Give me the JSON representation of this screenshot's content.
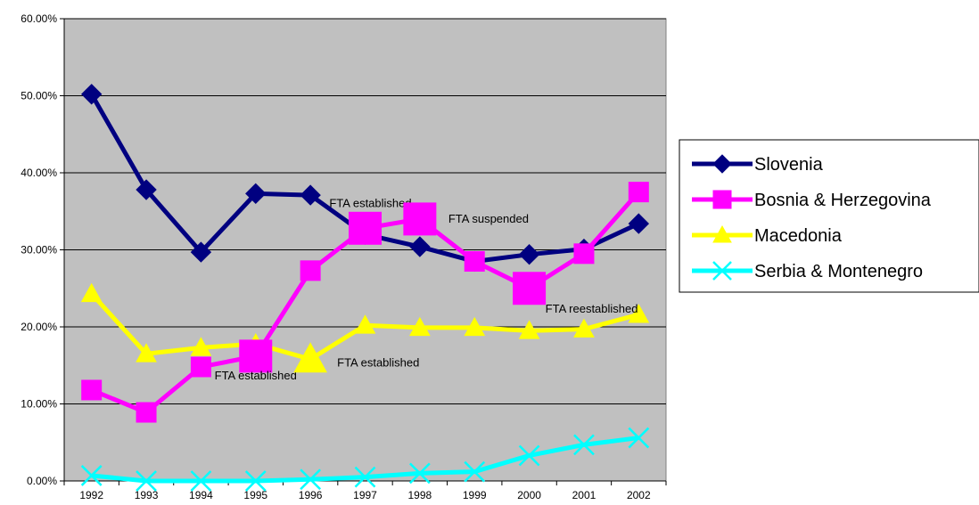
{
  "chart_data": {
    "type": "line",
    "title": "",
    "xlabel": "",
    "ylabel": "",
    "categories": [
      "1992",
      "1993",
      "1994",
      "1995",
      "1996",
      "1997",
      "1998",
      "1999",
      "2000",
      "2001",
      "2002"
    ],
    "ylim": [
      0,
      0.6
    ],
    "yticks": [
      {
        "value": 0.0,
        "label": "0.00%"
      },
      {
        "value": 0.1,
        "label": "10.00%"
      },
      {
        "value": 0.2,
        "label": "20.00%"
      },
      {
        "value": 0.3,
        "label": "30.00%"
      },
      {
        "value": 0.4,
        "label": "40.00%"
      },
      {
        "value": 0.5,
        "label": "50.00%"
      },
      {
        "value": 0.6,
        "label": "60.00%"
      }
    ],
    "grid": "horizontal",
    "plot_background": "#C0C0C0",
    "legend_position": "right",
    "series": [
      {
        "name": "Slovenia",
        "color": "#000080",
        "marker": "diamond",
        "values": [
          0.502,
          0.378,
          0.297,
          0.373,
          0.371,
          0.32,
          0.304,
          0.285,
          0.294,
          0.301,
          0.334
        ]
      },
      {
        "name": "Bosnia & Herzegovina",
        "color": "#FF00FF",
        "marker": "square",
        "values": [
          0.118,
          0.089,
          0.148,
          0.162,
          0.273,
          0.328,
          0.34,
          0.285,
          0.25,
          0.295,
          0.375
        ]
      },
      {
        "name": "Macedonia",
        "color": "#FFFF00",
        "marker": "triangle",
        "values": [
          0.243,
          0.165,
          0.173,
          0.178,
          0.158,
          0.202,
          0.199,
          0.199,
          0.195,
          0.197,
          0.216
        ]
      },
      {
        "name": "Serbia & Montenegro",
        "color": "#00FFFF",
        "marker": "x",
        "values": [
          0.007,
          0.0,
          0.0,
          0.0,
          0.002,
          0.005,
          0.01,
          0.012,
          0.033,
          0.047,
          0.056
        ]
      }
    ],
    "annotations": [
      {
        "text": "FTA established",
        "series": 1,
        "x_index": 3
      },
      {
        "text": "FTA established",
        "series": 2,
        "x_index": 4
      },
      {
        "text": "FTA established",
        "series": 1,
        "x_index": 5
      },
      {
        "text": "FTA suspended",
        "series": 1,
        "x_index": 6
      },
      {
        "text": "FTA reestablished",
        "series": 1,
        "x_index": 8
      }
    ]
  }
}
